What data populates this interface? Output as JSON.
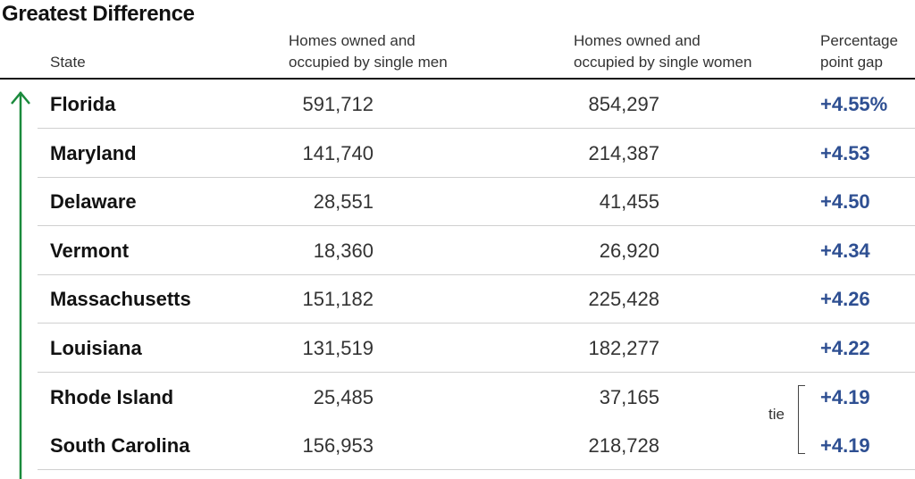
{
  "title": "Greatest Difference",
  "headers": {
    "state": "State",
    "men_line1": "Homes owned and",
    "men_line2": "occupied by single men",
    "women_line1": "Homes owned and",
    "women_line2": "occupied by single women",
    "gap_line1": "Percentage",
    "gap_line2": "point gap"
  },
  "tie_label": "tie",
  "colors": {
    "gap_text": "#2e4f92",
    "arrow": "#1a8a3c"
  },
  "icons": {
    "arrow": "up-arrow-icon"
  },
  "chart_data": {
    "type": "table",
    "columns": [
      "State",
      "Homes owned and occupied by single men",
      "Homes owned and occupied by single women",
      "Percentage point gap"
    ],
    "rows": [
      {
        "state": "Florida",
        "men": "591,712",
        "women": "854,297",
        "gap": "+4.55%"
      },
      {
        "state": "Maryland",
        "men": "141,740",
        "women": "214,387",
        "gap": "+4.53"
      },
      {
        "state": "Delaware",
        "men": "28,551",
        "women": "41,455",
        "gap": "+4.50"
      },
      {
        "state": "Vermont",
        "men": "18,360",
        "women": "26,920",
        "gap": "+4.34"
      },
      {
        "state": "Massachusetts",
        "men": "151,182",
        "women": "225,428",
        "gap": "+4.26"
      },
      {
        "state": "Louisiana",
        "men": "131,519",
        "women": "182,277",
        "gap": "+4.22"
      },
      {
        "state": "Rhode Island",
        "men": "25,485",
        "women": "37,165",
        "gap": "+4.19"
      },
      {
        "state": "South Carolina",
        "men": "156,953",
        "women": "218,728",
        "gap": "+4.19"
      }
    ]
  }
}
